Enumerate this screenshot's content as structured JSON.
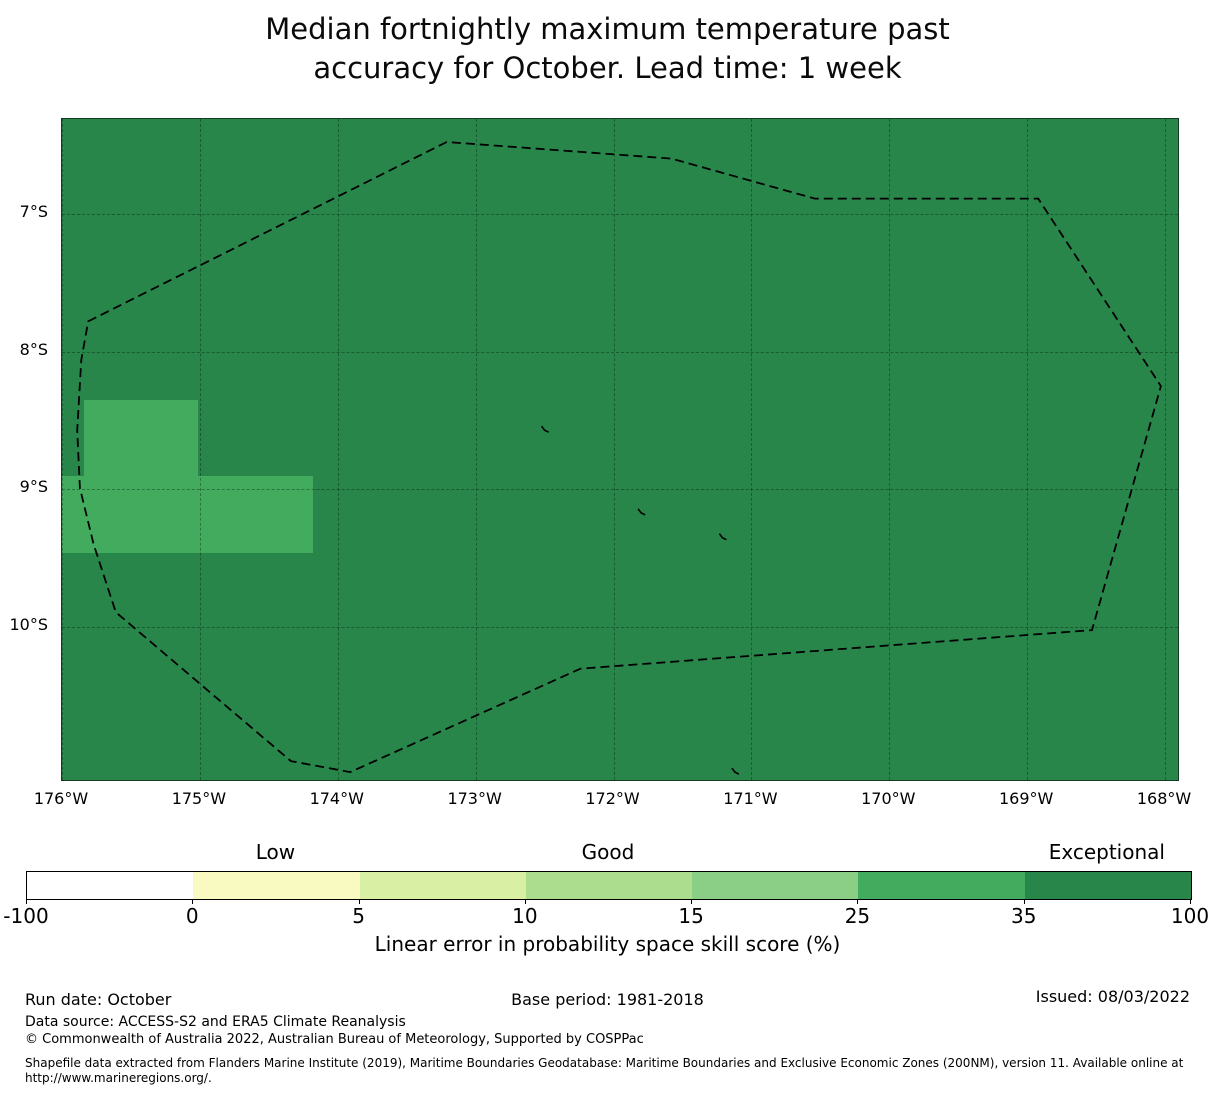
{
  "title": {
    "line1": "Median fortnightly maximum temperature past",
    "line2": "accuracy for October. Lead time: 1 week"
  },
  "chart_data": {
    "type": "heatmap",
    "title": "Median fortnightly maximum temperature past accuracy for October. Lead time: 1 week",
    "x_tick_labels": [
      "176°W",
      "175°W",
      "174°W",
      "173°W",
      "172°W",
      "171°W",
      "170°W",
      "169°W",
      "168°W"
    ],
    "x_tick_values": [
      -176,
      -175,
      -174,
      -173,
      -172,
      -171,
      -170,
      -169,
      -168
    ],
    "y_tick_labels": [
      "7°S",
      "8°S",
      "9°S",
      "10°S"
    ],
    "y_tick_values": [
      7,
      8,
      9,
      10
    ],
    "x_domain": [
      -176.0,
      -167.906
    ],
    "y_domain": [
      6.313,
      11.107
    ],
    "grid": true,
    "map_background_color": "#28864b",
    "background_value_bin": "35-100",
    "cell_color": "#43ab5e",
    "cell_value_bin": "25-35",
    "cells_25_35": [
      {
        "lon_min": -175.84,
        "lon_max": -175.01,
        "lat_min": 8.35,
        "lat_max": 8.9
      },
      {
        "lon_min": -176.0,
        "lon_max": -174.18,
        "lat_min": 8.9,
        "lat_max": 9.46
      }
    ],
    "eez_boundary_lonlat": [
      [
        -175.81,
        7.78
      ],
      [
        -173.21,
        6.48
      ],
      [
        -171.58,
        6.6
      ],
      [
        -170.54,
        6.89
      ],
      [
        -168.92,
        6.89
      ],
      [
        -168.03,
        8.25
      ],
      [
        -168.53,
        10.02
      ],
      [
        -172.24,
        10.3
      ],
      [
        -173.91,
        11.05
      ],
      [
        -174.34,
        10.97
      ],
      [
        -175.61,
        9.89
      ],
      [
        -175.77,
        9.4
      ],
      [
        -175.87,
        8.99
      ],
      [
        -175.89,
        8.57
      ],
      [
        -175.86,
        8.06
      ]
    ],
    "islands_lonlat": [
      [
        -172.5,
        8.57
      ],
      [
        -171.8,
        9.17
      ],
      [
        -171.21,
        9.35
      ],
      [
        -171.12,
        11.05
      ]
    ],
    "colorbar": {
      "boundaries": [
        -100,
        0,
        5,
        10,
        15,
        25,
        35,
        100
      ],
      "tick_labels": [
        "-100",
        "0",
        "5",
        "10",
        "15",
        "25",
        "35",
        "100"
      ],
      "segment_colors": [
        "#ffffff",
        "#f8fac1",
        "#d9efa3",
        "#acdc8d",
        "#8bce85",
        "#43ab5e",
        "#28864b"
      ],
      "categories": [
        {
          "label": "Low",
          "segment_index": 1
        },
        {
          "label": "Good",
          "segment_index": 3
        },
        {
          "label": "Exceptional",
          "segment_index": 6
        }
      ],
      "axis_label": "Linear error in probability space skill score (%)"
    }
  },
  "footer": {
    "run_date": "Run date: October",
    "base_period": "Base period: 1981-2018",
    "issued": "Issued: 08/03/2022",
    "data_source": "Data source: ACCESS-S2 and ERA5 Climate Reanalysis",
    "copyright": "© Commonwealth of Australia 2022, Australian Bureau of Meteorology, Supported by COSPPac",
    "shapefile_line1": "Shapefile data extracted from Flanders Marine Institute (2019), Maritime Boundaries Geodatabase: Maritime Boundaries and Exclusive Economic Zones (200NM), version 11. Available online at",
    "shapefile_line2": "http://www.marineregions.org/."
  }
}
